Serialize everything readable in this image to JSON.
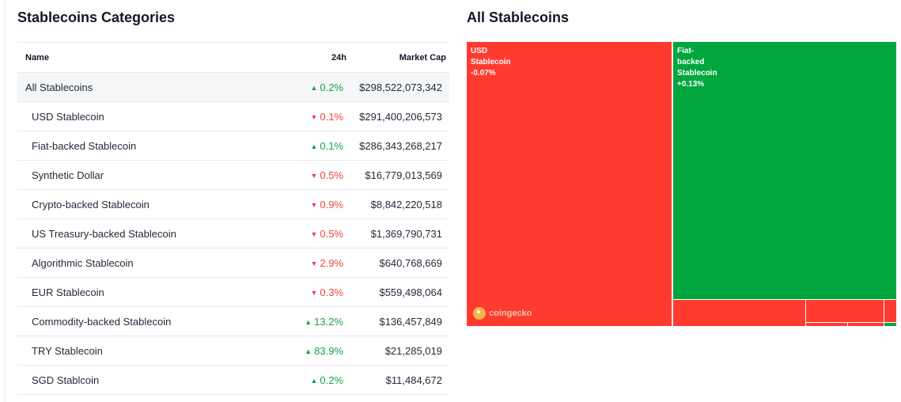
{
  "categories_panel": {
    "title": "Stablecoins Categories",
    "columns": {
      "name": "Name",
      "change_24h": "24h",
      "market_cap": "Market Cap"
    },
    "rows": [
      {
        "name": "All Stablecoins",
        "change": "0.2%",
        "direction": "up",
        "market_cap": "$298,522,073,342"
      },
      {
        "name": "USD Stablecoin",
        "change": "0.1%",
        "direction": "down",
        "market_cap": "$291,400,206,573"
      },
      {
        "name": "Fiat-backed Stablecoin",
        "change": "0.1%",
        "direction": "up",
        "market_cap": "$286,343,268,217"
      },
      {
        "name": "Synthetic Dollar",
        "change": "0.5%",
        "direction": "down",
        "market_cap": "$16,779,013,569"
      },
      {
        "name": "Crypto-backed Stablecoin",
        "change": "0.9%",
        "direction": "down",
        "market_cap": "$8,842,220,518"
      },
      {
        "name": "US Treasury-backed Stablecoin",
        "change": "0.5%",
        "direction": "down",
        "market_cap": "$1,369,790,731"
      },
      {
        "name": "Algorithmic Stablecoin",
        "change": "2.9%",
        "direction": "down",
        "market_cap": "$640,768,669"
      },
      {
        "name": "EUR Stablecoin",
        "change": "0.3%",
        "direction": "down",
        "market_cap": "$559,498,064"
      },
      {
        "name": "Commodity-backed Stablecoin",
        "change": "13.2%",
        "direction": "up",
        "market_cap": "$136,457,849"
      },
      {
        "name": "TRY Stablecoin",
        "change": "83.9%",
        "direction": "up",
        "market_cap": "$21,285,019"
      },
      {
        "name": "SGD Stablcoin",
        "change": "0.2%",
        "direction": "up",
        "market_cap": "$11,484,672"
      }
    ]
  },
  "treemap_panel": {
    "title": "All Stablecoins",
    "tiles": [
      {
        "lines": [
          "USD",
          "Stablecoin",
          "-0.07%"
        ],
        "color": "#ff3b30"
      },
      {
        "lines": [
          "Fiat-",
          "backed",
          "Stablecoin",
          "+0.13%"
        ],
        "color": "#00a63e"
      }
    ],
    "watermark": "coingecko"
  },
  "colors": {
    "up": "#16a34a",
    "down": "#ef4444",
    "treemap_red": "#ff3b30",
    "treemap_green": "#00a63e"
  }
}
